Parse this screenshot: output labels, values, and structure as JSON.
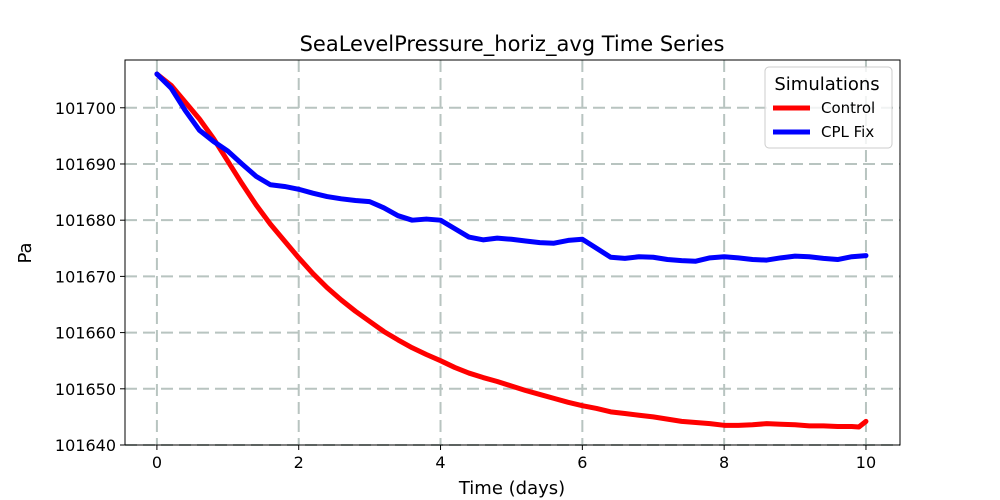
{
  "chart_data": {
    "type": "line",
    "title": "SeaLevelPressure_horiz_avg Time Series",
    "xlabel": "Time (days)",
    "ylabel": "Pa",
    "xlim": [
      -0.45,
      10.48
    ],
    "ylim": [
      101640,
      101708.5
    ],
    "xticks": [
      0,
      2,
      4,
      6,
      8,
      10
    ],
    "yticks": [
      101640,
      101650,
      101660,
      101670,
      101680,
      101690,
      101700
    ],
    "grid": true,
    "legend": {
      "title": "Simulations",
      "position": "top-right"
    },
    "series": [
      {
        "name": "Control",
        "color": "#ff0000",
        "x": [
          0.0,
          0.2,
          0.4,
          0.6,
          0.8,
          1.0,
          1.2,
          1.4,
          1.6,
          1.8,
          2.0,
          2.2,
          2.4,
          2.6,
          2.8,
          3.0,
          3.2,
          3.4,
          3.6,
          3.8,
          4.0,
          4.2,
          4.4,
          4.6,
          4.8,
          5.0,
          5.2,
          5.4,
          5.6,
          5.8,
          6.0,
          6.2,
          6.4,
          6.6,
          6.8,
          7.0,
          7.2,
          7.4,
          7.6,
          7.8,
          8.0,
          8.2,
          8.4,
          8.6,
          8.8,
          9.0,
          9.2,
          9.4,
          9.6,
          9.8,
          9.9,
          10.0
        ],
        "y": [
          101706,
          101704,
          101701,
          101698,
          101694.5,
          101690.5,
          101686.5,
          101682.7,
          101679.3,
          101676.3,
          101673.3,
          101670.5,
          101668,
          101665.8,
          101663.8,
          101662,
          101660.2,
          101658.7,
          101657.3,
          101656.1,
          101655,
          101653.8,
          101652.8,
          101652,
          101651.3,
          101650.5,
          101649.7,
          101649,
          101648.3,
          101647.6,
          101647,
          101646.5,
          101645.9,
          101645.6,
          101645.3,
          101645,
          101644.6,
          101644.2,
          101644,
          101643.8,
          101643.5,
          101643.5,
          101643.6,
          101643.8,
          101643.7,
          101643.6,
          101643.4,
          101643.4,
          101643.3,
          101643.3,
          101643.2,
          101644.2
        ]
      },
      {
        "name": "CPL Fix",
        "color": "#0000ff",
        "x": [
          0.0,
          0.2,
          0.4,
          0.6,
          0.8,
          1.0,
          1.2,
          1.4,
          1.6,
          1.8,
          2.0,
          2.2,
          2.4,
          2.6,
          2.8,
          3.0,
          3.2,
          3.4,
          3.6,
          3.8,
          4.0,
          4.2,
          4.4,
          4.6,
          4.8,
          5.0,
          5.2,
          5.4,
          5.6,
          5.8,
          6.0,
          6.2,
          6.4,
          6.6,
          6.8,
          7.0,
          7.2,
          7.4,
          7.6,
          7.8,
          8.0,
          8.2,
          8.4,
          8.6,
          8.8,
          9.0,
          9.2,
          9.4,
          9.6,
          9.8,
          10.0
        ],
        "y": [
          101706,
          101703.5,
          101699.5,
          101696,
          101694,
          101692.3,
          101690,
          101687.8,
          101686.3,
          101686,
          101685.5,
          101684.8,
          101684.2,
          101683.8,
          101683.5,
          101683.3,
          101682.2,
          101680.8,
          101680,
          101680.2,
          101680,
          101678.5,
          101677,
          101676.5,
          101676.8,
          101676.6,
          101676.3,
          101676,
          101675.9,
          101676.4,
          101676.6,
          101675,
          101673.4,
          101673.2,
          101673.5,
          101673.4,
          101673,
          101672.8,
          101672.7,
          101673.3,
          101673.5,
          101673.3,
          101673,
          101672.9,
          101673.3,
          101673.6,
          101673.5,
          101673.2,
          101673,
          101673.5,
          101673.7
        ]
      }
    ]
  }
}
